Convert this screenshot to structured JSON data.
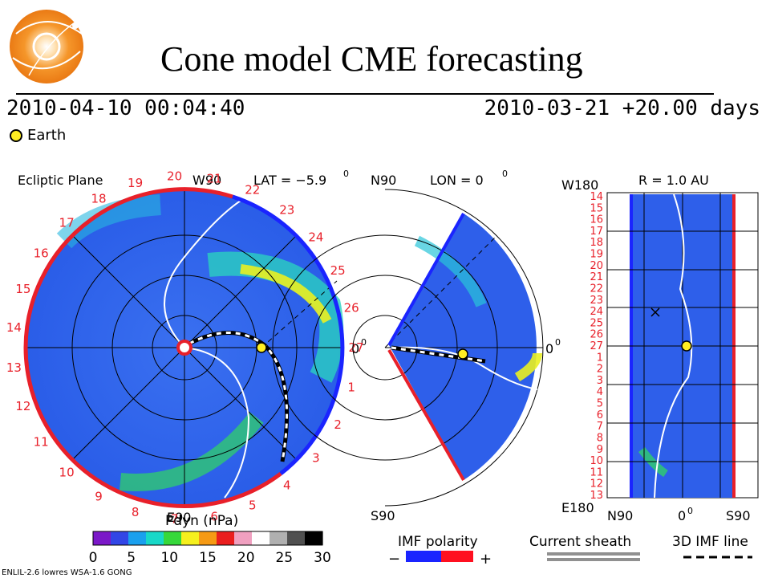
{
  "slide": {
    "title": "Cone model CME forecasting",
    "time_left": "2010-04-10 00:04:40",
    "time_right": "2010-03-21 +20.00 days",
    "earth_label": "Earth",
    "footer": "ENLIL-2.6 lowres WSA-1.6 GONG"
  },
  "panels": {
    "ecliptic": {
      "title": "Ecliptic Plane",
      "top_label": "W90",
      "bottom_label": "E90",
      "lat_label": "LAT = −5.9",
      "zero_label": "0",
      "rotation_numbers": [
        "1",
        "2",
        "3",
        "4",
        "5",
        "6",
        "7",
        "8",
        "9",
        "10",
        "11",
        "12",
        "13",
        "14",
        "15",
        "16",
        "17",
        "18",
        "19",
        "20",
        "21",
        "22",
        "23",
        "24",
        "25",
        "26",
        "27"
      ]
    },
    "meridional": {
      "n_label": "N90",
      "s_label": "S90",
      "lon_label": "LON = 0",
      "zero_label": "0"
    },
    "radial": {
      "r_label": "R = 1.0 AU",
      "w_label": "W180",
      "e_label": "E180",
      "x_labels": [
        "N90",
        "0",
        "S90"
      ],
      "y_labels": [
        "14",
        "15",
        "16",
        "17",
        "18",
        "19",
        "20",
        "21",
        "22",
        "23",
        "24",
        "25",
        "26",
        "27",
        "1",
        "2",
        "3",
        "4",
        "5",
        "6",
        "7",
        "8",
        "9",
        "10",
        "11",
        "12",
        "13"
      ]
    }
  },
  "chart_data": {
    "type": "heatmap",
    "quantity": "Pdyn (nPa)",
    "colorbar": {
      "ticks": [
        "0",
        "5",
        "10",
        "15",
        "20",
        "25",
        "30"
      ],
      "range": [
        0,
        30
      ]
    },
    "colorscale_colors": [
      "#7b18c8",
      "#3246e6",
      "#1aa0ee",
      "#18d8c8",
      "#36d83a",
      "#f6f01e",
      "#f69a14",
      "#ea1e1e",
      "#f0a0c0",
      "#ffffff",
      "#b0b0b0",
      "#505050",
      "#000000"
    ]
  },
  "legend": {
    "imf_polarity_label": "IMF polarity",
    "minus": "−",
    "plus": "+",
    "current_sheath_label": "Current sheath",
    "imf_line_label": "3D IMF line",
    "colors": {
      "negative": "#1020ff",
      "positive": "#ff1020"
    }
  }
}
